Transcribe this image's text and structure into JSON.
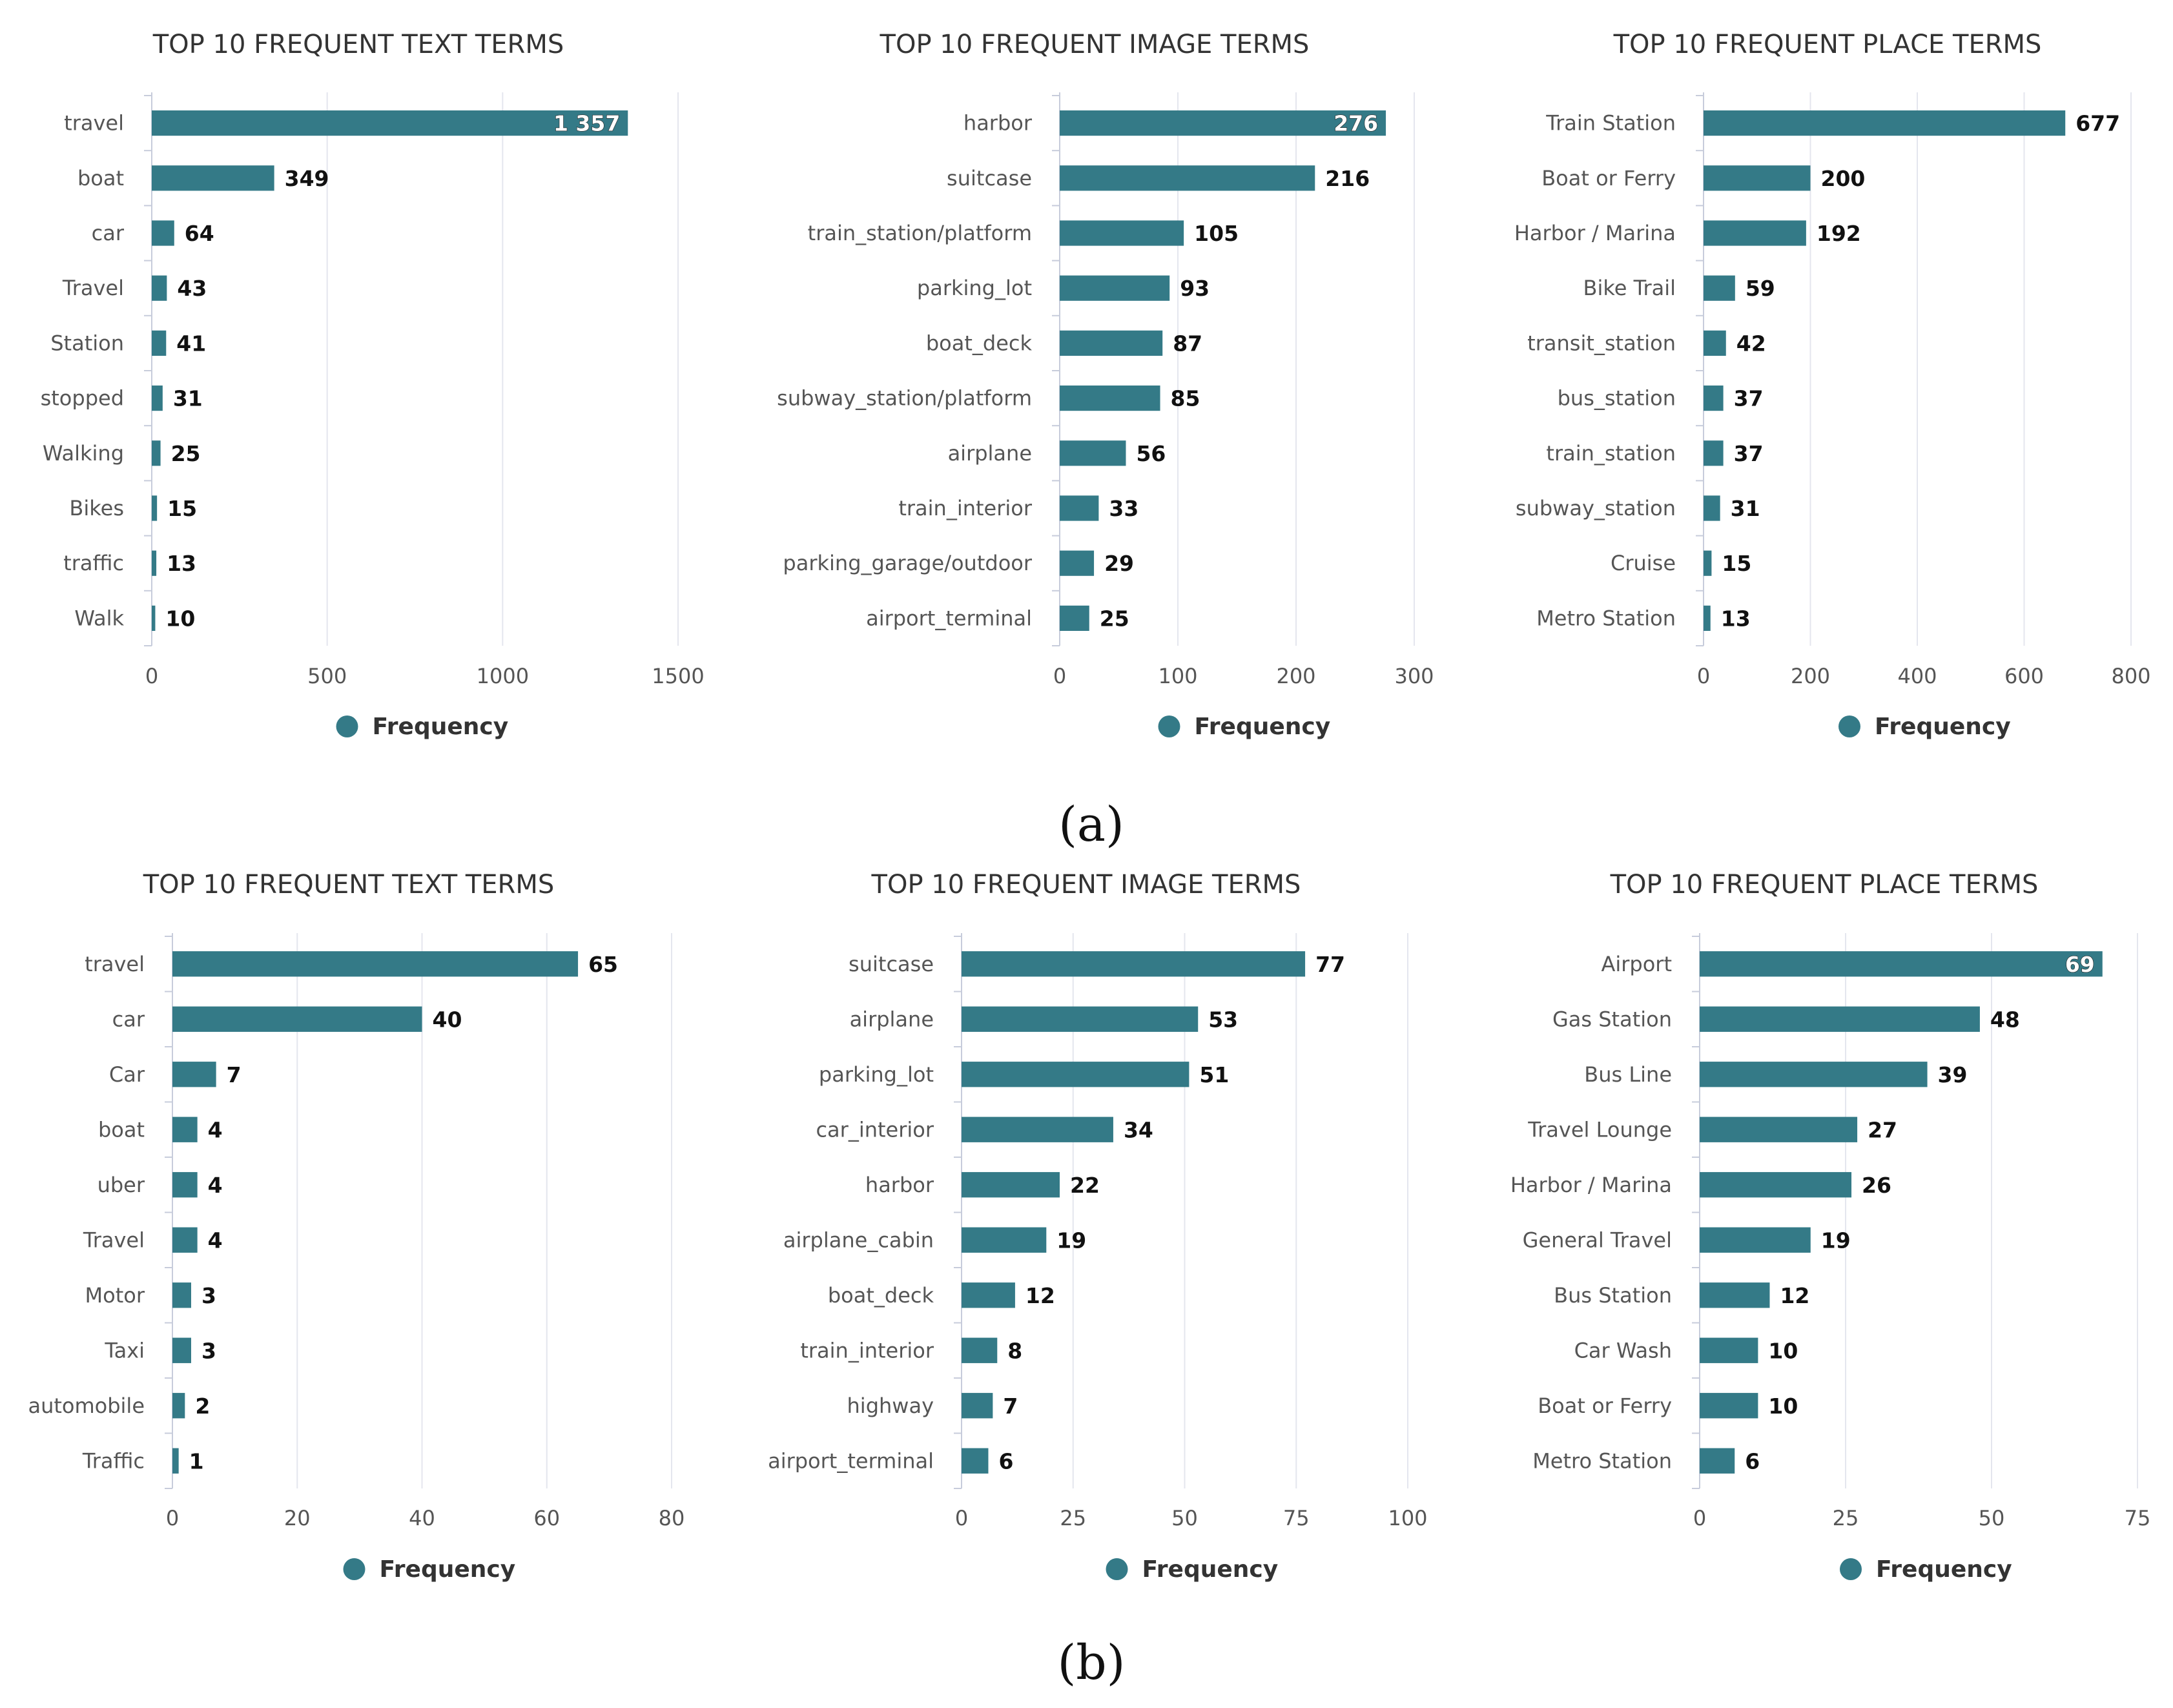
{
  "colors": {
    "bar": "#347a87",
    "grid": "#e4e6ee",
    "axis": "#c7ccdb"
  },
  "rows": [
    {
      "label": "(a)"
    },
    {
      "label": "(b)"
    }
  ],
  "chart_data": [
    {
      "type": "bar",
      "orientation": "horizontal",
      "title": "TOP 10 FREQUENT TEXT TERMS",
      "categories": [
        "travel",
        "boat",
        "car",
        "Travel",
        "Station",
        "stopped",
        "Walking",
        "Bikes",
        "traffic",
        "Walk"
      ],
      "values": [
        1357,
        349,
        64,
        43,
        41,
        31,
        25,
        15,
        13,
        10
      ],
      "value_labels": [
        "1 357",
        "349",
        "64",
        "43",
        "41",
        "31",
        "25",
        "15",
        "13",
        "10"
      ],
      "xlim": [
        0,
        1500
      ],
      "ticks": [
        0,
        500,
        1000,
        1500
      ],
      "tick_labels": [
        "0",
        "500",
        "1000",
        "1500"
      ],
      "legend": "Frequency",
      "legend_position": "bottom-center",
      "grid": true
    },
    {
      "type": "bar",
      "orientation": "horizontal",
      "title": "TOP 10 FREQUENT IMAGE TERMS",
      "categories": [
        "harbor",
        "suitcase",
        "train_station/platform",
        "parking_lot",
        "boat_deck",
        "subway_station/platform",
        "airplane",
        "train_interior",
        "parking_garage/outdoor",
        "airport_terminal"
      ],
      "values": [
        276,
        216,
        105,
        93,
        87,
        85,
        56,
        33,
        29,
        25
      ],
      "value_labels": [
        "276",
        "216",
        "105",
        "93",
        "87",
        "85",
        "56",
        "33",
        "29",
        "25"
      ],
      "xlim": [
        0,
        300
      ],
      "ticks": [
        0,
        100,
        200,
        300
      ],
      "tick_labels": [
        "0",
        "100",
        "200",
        "300"
      ],
      "legend": "Frequency",
      "legend_position": "bottom-center",
      "grid": true
    },
    {
      "type": "bar",
      "orientation": "horizontal",
      "title": "TOP 10 FREQUENT PLACE TERMS",
      "categories": [
        "Train Station",
        "Boat or Ferry",
        "Harbor / Marina",
        "Bike Trail",
        "transit_station",
        "bus_station",
        "train_station",
        "subway_station",
        "Cruise",
        "Metro Station"
      ],
      "values": [
        677,
        200,
        192,
        59,
        42,
        37,
        37,
        31,
        15,
        13
      ],
      "value_labels": [
        "677",
        "200",
        "192",
        "59",
        "42",
        "37",
        "37",
        "31",
        "15",
        "13"
      ],
      "xlim": [
        0,
        800
      ],
      "ticks": [
        0,
        200,
        400,
        600,
        800
      ],
      "tick_labels": [
        "0",
        "200",
        "400",
        "600",
        "800"
      ],
      "legend": "Frequency",
      "legend_position": "bottom-center",
      "grid": true
    },
    {
      "type": "bar",
      "orientation": "horizontal",
      "title": "TOP 10 FREQUENT TEXT TERMS",
      "categories": [
        "travel",
        "car",
        "Car",
        "boat",
        "uber",
        "Travel",
        "Motor",
        "Taxi",
        "automobile",
        "Traffic"
      ],
      "values": [
        65,
        40,
        7,
        4,
        4,
        4,
        3,
        3,
        2,
        1
      ],
      "value_labels": [
        "65",
        "40",
        "7",
        "4",
        "4",
        "4",
        "3",
        "3",
        "2",
        "1"
      ],
      "xlim": [
        0,
        80
      ],
      "ticks": [
        0,
        20,
        40,
        60,
        80
      ],
      "tick_labels": [
        "0",
        "20",
        "40",
        "60",
        "80"
      ],
      "legend": "Frequency",
      "legend_position": "bottom-center",
      "grid": true
    },
    {
      "type": "bar",
      "orientation": "horizontal",
      "title": "TOP 10 FREQUENT IMAGE TERMS",
      "categories": [
        "suitcase",
        "airplane",
        "parking_lot",
        "car_interior",
        "harbor",
        "airplane_cabin",
        "boat_deck",
        "train_interior",
        "highway",
        "airport_terminal"
      ],
      "values": [
        77,
        53,
        51,
        34,
        22,
        19,
        12,
        8,
        7,
        6
      ],
      "value_labels": [
        "77",
        "53",
        "51",
        "34",
        "22",
        "19",
        "12",
        "8",
        "7",
        "6"
      ],
      "xlim": [
        0,
        100
      ],
      "ticks": [
        0,
        25,
        50,
        75,
        100
      ],
      "tick_labels": [
        "0",
        "25",
        "50",
        "75",
        "100"
      ],
      "legend": "Frequency",
      "legend_position": "bottom-center",
      "grid": true
    },
    {
      "type": "bar",
      "orientation": "horizontal",
      "title": "TOP 10 FREQUENT PLACE TERMS",
      "categories": [
        "Airport",
        "Gas Station",
        "Bus Line",
        "Travel Lounge",
        "Harbor / Marina",
        "General Travel",
        "Bus Station",
        "Car Wash",
        "Boat or Ferry",
        "Metro Station"
      ],
      "values": [
        69,
        48,
        39,
        27,
        26,
        19,
        12,
        10,
        10,
        6
      ],
      "value_labels": [
        "69",
        "48",
        "39",
        "27",
        "26",
        "19",
        "12",
        "10",
        "10",
        "6"
      ],
      "xlim": [
        0,
        75
      ],
      "ticks": [
        0,
        25,
        50,
        75
      ],
      "tick_labels": [
        "0",
        "25",
        "50",
        "75"
      ],
      "legend": "Frequency",
      "legend_position": "bottom-center",
      "grid": true
    }
  ]
}
